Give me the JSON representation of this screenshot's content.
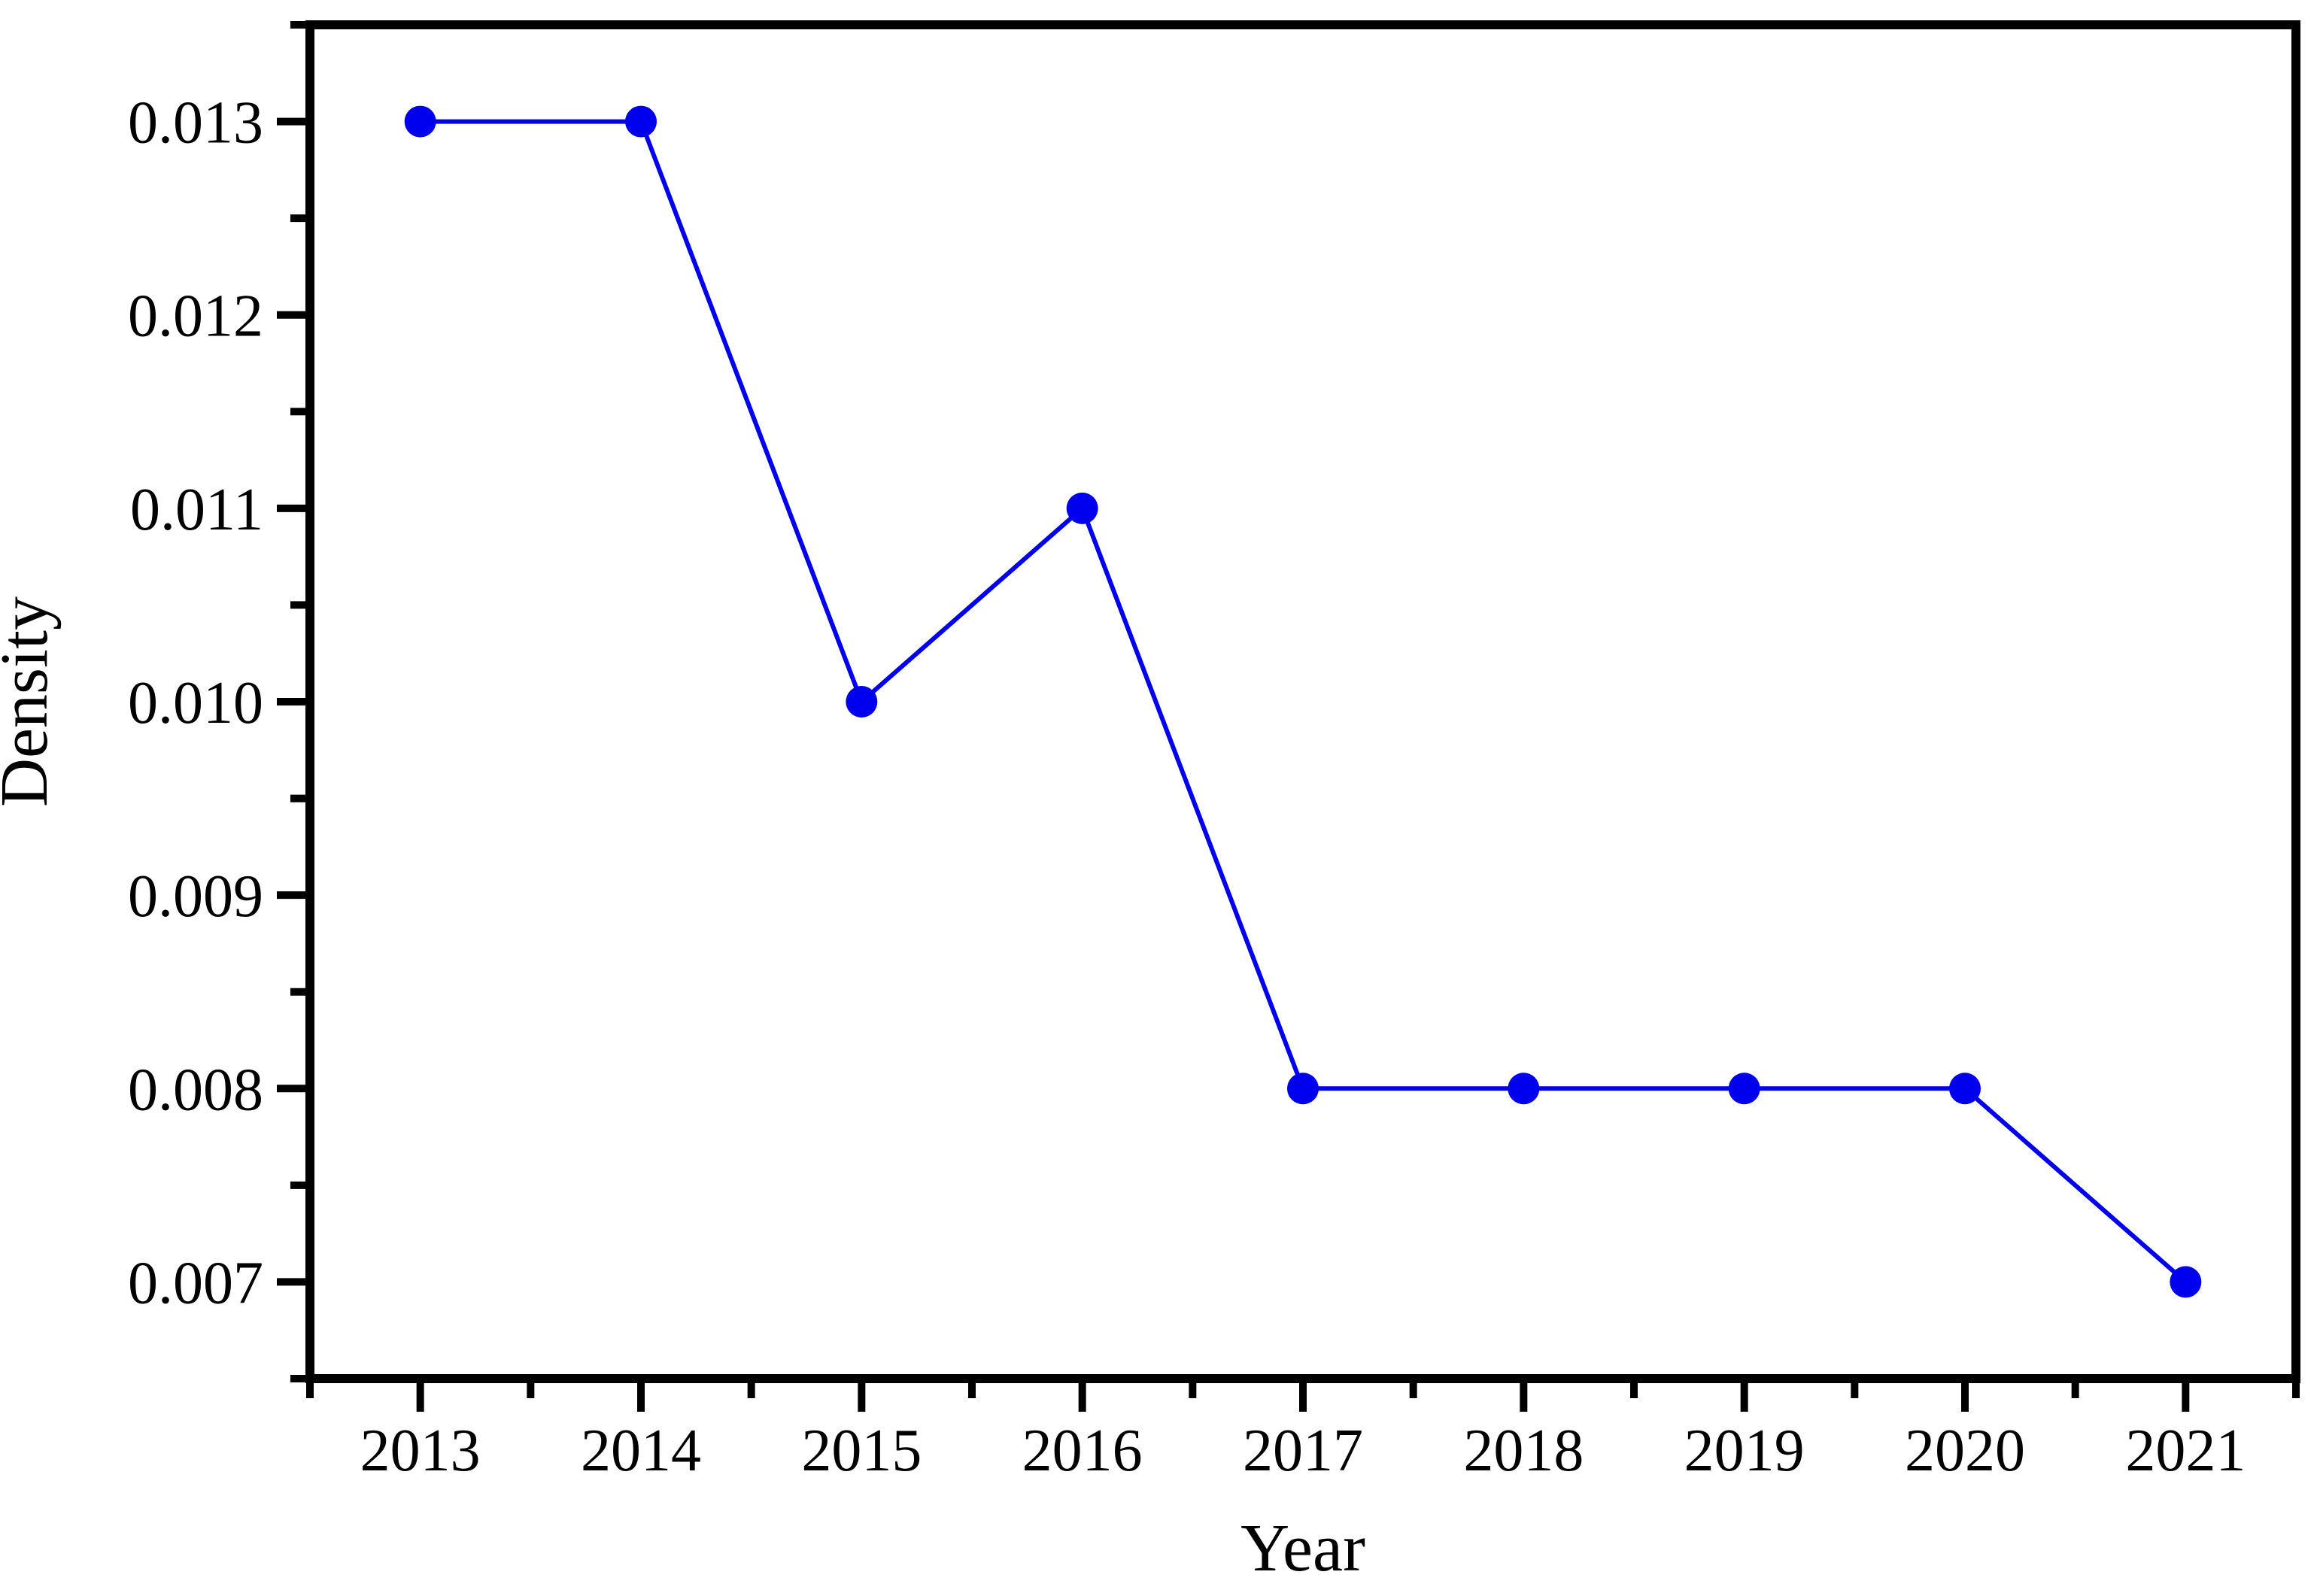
{
  "figure": {
    "background_color": "#ffffff",
    "axis_color": "#000000"
  },
  "chart_data": {
    "type": "line",
    "title": "",
    "xlabel": "Year",
    "ylabel": "Density",
    "x": [
      2013,
      2014,
      2015,
      2016,
      2017,
      2018,
      2019,
      2020,
      2021
    ],
    "y": [
      0.013,
      0.013,
      0.01,
      0.011,
      0.008,
      0.008,
      0.008,
      0.008,
      0.007
    ],
    "xlim": [
      2012.5,
      2021.5
    ],
    "ylim": [
      0.0065,
      0.0135
    ],
    "xticks": {
      "values": [
        2013,
        2014,
        2015,
        2016,
        2017,
        2018,
        2019,
        2020,
        2021
      ],
      "labels": [
        "2013",
        "2014",
        "2015",
        "2016",
        "2017",
        "2018",
        "2019",
        "2020",
        "2021"
      ]
    },
    "yticks": {
      "values": [
        0.007,
        0.008,
        0.009,
        0.01,
        0.011,
        0.012,
        0.013
      ],
      "labels": [
        "0.007",
        "0.008",
        "0.009",
        "0.010",
        "0.011",
        "0.012",
        "0.013"
      ]
    },
    "minor_xticks": [
      2012.5,
      2013.5,
      2014.5,
      2015.5,
      2016.5,
      2017.5,
      2018.5,
      2019.5,
      2020.5,
      2021.5
    ],
    "minor_yticks": [
      0.0065,
      0.0075,
      0.0085,
      0.0095,
      0.0105,
      0.0115,
      0.0125,
      0.0135
    ],
    "grid": false,
    "legend": "none",
    "line_color": "#0000EE",
    "marker": "circle",
    "marker_color": "#0000EE"
  }
}
